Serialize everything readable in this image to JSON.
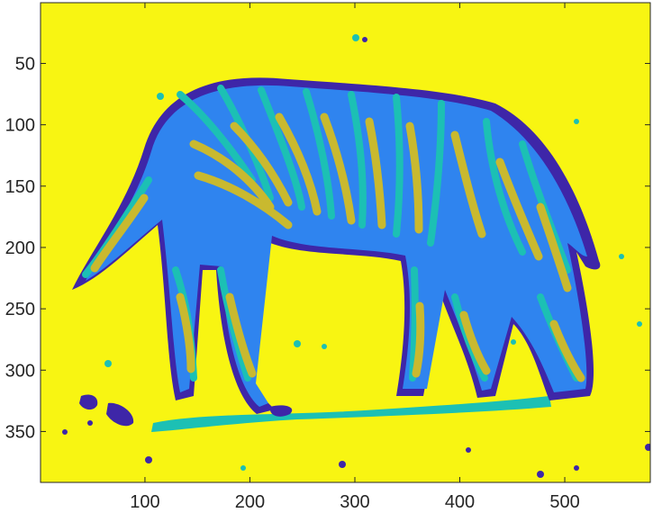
{
  "chart_data": {
    "type": "heatmap",
    "title": "",
    "xlabel": "",
    "ylabel": "",
    "xlim": [
      0.5,
      581.5
    ],
    "ylim": [
      0.5,
      391.5
    ],
    "y_reversed": true,
    "x_ticks": [
      100,
      200,
      300,
      400,
      500
    ],
    "y_ticks": [
      50,
      100,
      150,
      200,
      250,
      300,
      350
    ],
    "x_tick_labels": [
      "100",
      "200",
      "300",
      "400",
      "500"
    ],
    "y_tick_labels": [
      "50",
      "100",
      "150",
      "200",
      "250",
      "300",
      "350"
    ],
    "colormap": "parula",
    "clusters": 5,
    "cluster_colors": [
      "#3e26a8",
      "#2f84ef",
      "#1cc0b4",
      "#c9b92f",
      "#f8f512"
    ],
    "grid": false,
    "legend": "none"
  }
}
